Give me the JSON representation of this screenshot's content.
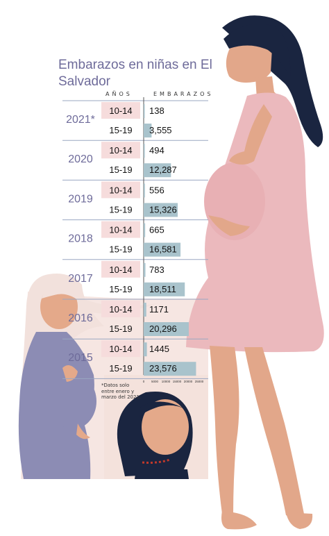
{
  "title": "Embarazos en niñas en El Salvador",
  "headers": {
    "age": "AÑOS",
    "count": "EMBARAZOS"
  },
  "footnote": "*Datos solo entre enero y marzo del 2021.",
  "colors": {
    "title": "#6e6b9a",
    "year": "#6e6b9a",
    "age_box": "#f6dcdc",
    "bar": "#a9c3cc",
    "bg_pink": "#f6e6e2",
    "dress": "#ebb9bd",
    "skin": "#e2a78a",
    "hair": "#1a2540",
    "girl_dress": "#8c8cb4",
    "girl_hair": "#f2e1dc"
  },
  "chart_data": {
    "type": "bar",
    "orientation": "horizontal",
    "years": [
      "2021*",
      "2020",
      "2019",
      "2018",
      "2017",
      "2016",
      "2015"
    ],
    "age_groups": [
      "10-14",
      "15-19"
    ],
    "series": [
      {
        "name": "10-14",
        "values": [
          138,
          494,
          556,
          665,
          783,
          1171,
          1445
        ],
        "labels": [
          "138",
          "494",
          "556",
          "665",
          "783",
          "1171",
          "1445"
        ]
      },
      {
        "name": "15-19",
        "values": [
          3555,
          12287,
          15326,
          16581,
          18511,
          20296,
          23576
        ],
        "labels": [
          "3,555",
          "12,287",
          "15,326",
          "16,581",
          "18,511",
          "20,296",
          "23,576"
        ]
      }
    ],
    "xlim": [
      0,
      25000
    ],
    "x_ticks": [
      "0",
      "5000",
      "10000",
      "15000",
      "20000",
      "25000"
    ]
  }
}
